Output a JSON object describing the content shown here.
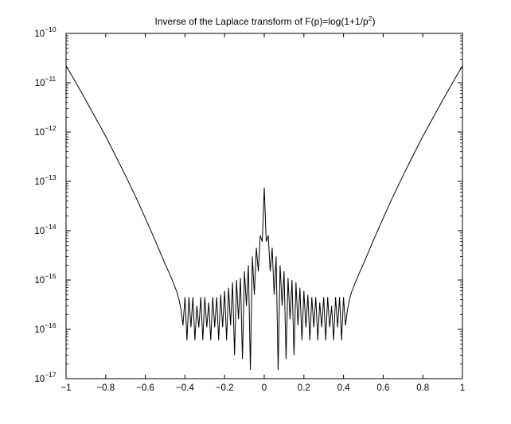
{
  "chart_data": {
    "type": "line",
    "title": {
      "main": "Inverse of the Laplace transform of F(p)=log(1+1/p",
      "superscript": "2",
      "tail": ")"
    },
    "xlabel": "",
    "ylabel": "",
    "xlim": [
      -1,
      1
    ],
    "ylim": [
      1e-17,
      1e-10
    ],
    "yscale": "log",
    "grid": false,
    "legend": "none",
    "line_color": "#000000",
    "x_ticks": [
      "−1",
      "−0.8",
      "−0.6",
      "−0.4",
      "−0.2",
      "0",
      "0.2",
      "0.4",
      "0.6",
      "0.8",
      "1"
    ],
    "x_tick_values": [
      -1,
      -0.8,
      -0.6,
      -0.4,
      -0.2,
      0,
      0.2,
      0.4,
      0.6,
      0.8,
      1
    ],
    "y_ticks": [
      {
        "value": 1e-10,
        "base": "10",
        "exp": "−10"
      },
      {
        "value": 1e-11,
        "base": "10",
        "exp": "−11"
      },
      {
        "value": 1e-12,
        "base": "10",
        "exp": "−12"
      },
      {
        "value": 1e-13,
        "base": "10",
        "exp": "−13"
      },
      {
        "value": 1e-14,
        "base": "10",
        "exp": "−14"
      },
      {
        "value": 1e-15,
        "base": "10",
        "exp": "−15"
      },
      {
        "value": 1e-16,
        "base": "10",
        "exp": "−16"
      },
      {
        "value": 1e-17,
        "base": "10",
        "exp": "−17"
      }
    ],
    "series": [
      {
        "x": [
          -1.0,
          -0.95,
          -0.9,
          -0.85,
          -0.8,
          -0.75,
          -0.7,
          -0.65,
          -0.6,
          -0.55,
          -0.5,
          -0.48,
          -0.46,
          -0.44,
          -0.43,
          -0.42,
          -0.41,
          -0.4,
          -0.39,
          -0.38,
          -0.37,
          -0.36,
          -0.35,
          -0.34,
          -0.33,
          -0.32,
          -0.31,
          -0.3,
          -0.29,
          -0.28,
          -0.27,
          -0.26,
          -0.25,
          -0.24,
          -0.23,
          -0.22,
          -0.21,
          -0.2,
          -0.19,
          -0.18,
          -0.17,
          -0.16,
          -0.15,
          -0.14,
          -0.13,
          -0.12,
          -0.11,
          -0.1,
          -0.09,
          -0.08,
          -0.07,
          -0.06,
          -0.05,
          -0.04,
          -0.03,
          -0.02,
          -0.01,
          0.0,
          0.01,
          0.02,
          0.03,
          0.04,
          0.05,
          0.06,
          0.07,
          0.08,
          0.09,
          0.1,
          0.11,
          0.12,
          0.13,
          0.14,
          0.15,
          0.16,
          0.17,
          0.18,
          0.19,
          0.2,
          0.21,
          0.22,
          0.23,
          0.24,
          0.25,
          0.26,
          0.27,
          0.28,
          0.29,
          0.3,
          0.31,
          0.32,
          0.33,
          0.34,
          0.35,
          0.36,
          0.37,
          0.38,
          0.39,
          0.4,
          0.41,
          0.42,
          0.43,
          0.44,
          0.46,
          0.48,
          0.5,
          0.55,
          0.6,
          0.65,
          0.7,
          0.75,
          0.8,
          0.85,
          0.9,
          0.95,
          1.0
        ],
        "y": [
          2.2e-11,
          1e-11,
          4.4e-12,
          1.9e-12,
          8.2e-13,
          3.3e-13,
          1.3e-13,
          5e-14,
          1.8e-14,
          6.3e-15,
          2.1e-15,
          1.4e-15,
          9e-16,
          5.6e-16,
          4e-16,
          2.5e-16,
          1.2e-16,
          4.5e-16,
          6e-17,
          4.5e-16,
          1.1e-16,
          4.5e-16,
          6e-17,
          3e-16,
          1.1e-16,
          4.5e-16,
          6e-17,
          4.5e-16,
          1.1e-16,
          3.5e-16,
          6e-17,
          4.5e-16,
          1.1e-16,
          4.5e-16,
          6e-17,
          5e-16,
          1.1e-16,
          6e-16,
          6e-17,
          7e-16,
          1.2e-16,
          9e-16,
          3e-17,
          1e-15,
          1.6e-16,
          1.1e-15,
          2.5e-17,
          1.5e-15,
          3e-16,
          2e-15,
          1.5e-17,
          3e-15,
          5e-16,
          4.5e-15,
          1.5e-15,
          8e-15,
          6e-15,
          7.5e-14,
          6e-15,
          8e-15,
          1.5e-15,
          4.5e-15,
          5e-16,
          3e-15,
          1.5e-17,
          2e-15,
          3e-16,
          1.5e-15,
          2.5e-17,
          1.1e-15,
          1.6e-16,
          1e-15,
          3e-17,
          9e-16,
          1.2e-16,
          7e-16,
          6e-17,
          6e-16,
          1.1e-16,
          5e-16,
          6e-17,
          4.5e-16,
          1.1e-16,
          4.5e-16,
          6e-17,
          3.5e-16,
          1.1e-16,
          4.5e-16,
          6e-17,
          4.5e-16,
          1.1e-16,
          3e-16,
          6e-17,
          4.5e-16,
          1.1e-16,
          4.5e-16,
          6e-17,
          4.5e-16,
          1.2e-16,
          2.5e-16,
          4e-16,
          5.6e-16,
          9e-16,
          1.4e-15,
          2.1e-15,
          6.3e-15,
          1.8e-14,
          5e-14,
          1.3e-13,
          3.3e-13,
          8.2e-13,
          1.9e-12,
          4.4e-12,
          1e-11,
          2.2e-11
        ]
      }
    ]
  }
}
